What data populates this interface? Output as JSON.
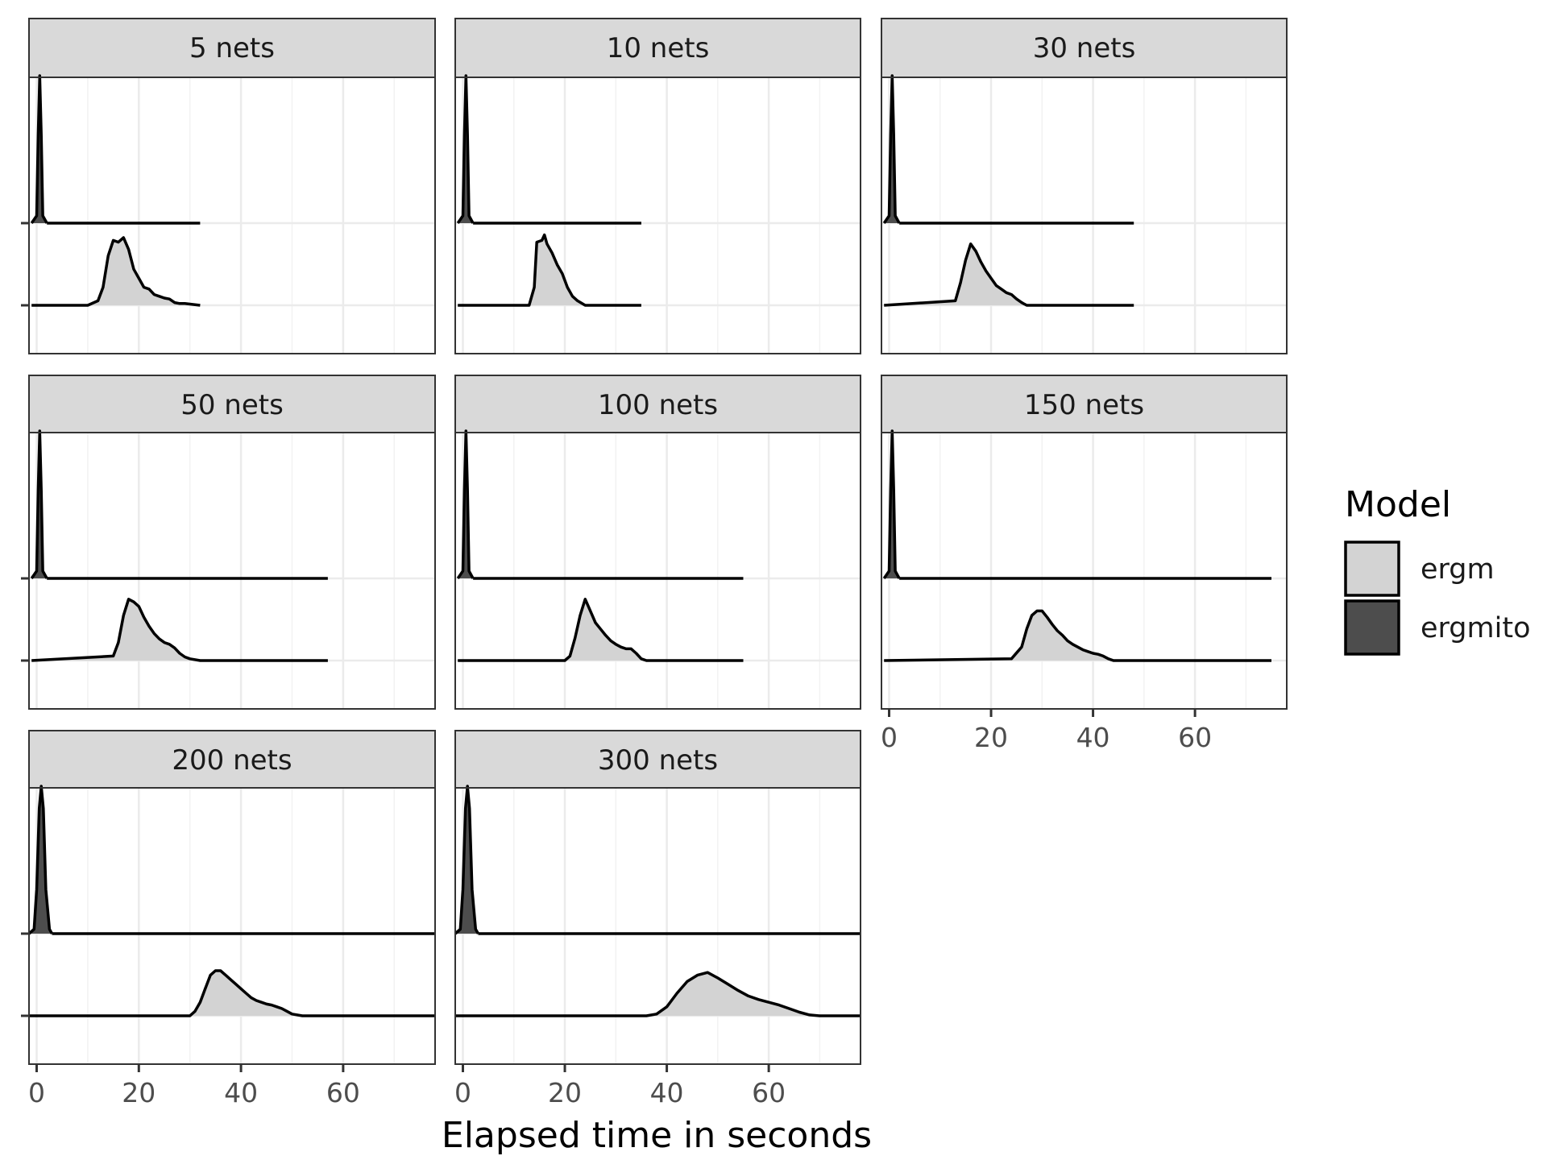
{
  "chart_data": {
    "type": "ridgeline",
    "xlabel": "Elapsed time in seconds",
    "ylabel": "",
    "xlim": [
      -1.5,
      78
    ],
    "x_ticks": [
      0,
      20,
      40,
      60
    ],
    "grid": true,
    "legend": {
      "title": "Model",
      "placement": "right",
      "entries": [
        {
          "name": "ergm",
          "color": "#d3d3d3"
        },
        {
          "name": "ergmito",
          "color": "#4d4d4d"
        }
      ]
    },
    "panels": [
      {
        "label": "5 nets",
        "x_range": [
          -1,
          32
        ],
        "ergmito_curve": [
          [
            -1,
            0
          ],
          [
            0,
            0.05
          ],
          [
            0.3,
            0.6
          ],
          [
            0.6,
            1.0
          ],
          [
            0.9,
            0.6
          ],
          [
            1.2,
            0.05
          ],
          [
            2,
            0
          ]
        ],
        "ergm_curve": [
          [
            -1,
            0
          ],
          [
            10,
            0
          ],
          [
            12,
            0.05
          ],
          [
            13,
            0.2
          ],
          [
            14,
            0.55
          ],
          [
            15,
            0.72
          ],
          [
            16,
            0.7
          ],
          [
            17,
            0.75
          ],
          [
            18,
            0.62
          ],
          [
            19,
            0.4
          ],
          [
            20,
            0.3
          ],
          [
            21,
            0.2
          ],
          [
            22,
            0.18
          ],
          [
            23,
            0.12
          ],
          [
            24,
            0.1
          ],
          [
            25,
            0.08
          ],
          [
            26,
            0.07
          ],
          [
            27,
            0.03
          ],
          [
            28,
            0.02
          ],
          [
            29,
            0.02
          ],
          [
            32,
            0
          ]
        ]
      },
      {
        "label": "10 nets",
        "x_range": [
          -1,
          35
        ],
        "ergmito_curve": [
          [
            -1,
            0
          ],
          [
            0,
            0.05
          ],
          [
            0.3,
            0.6
          ],
          [
            0.6,
            1.0
          ],
          [
            0.9,
            0.6
          ],
          [
            1.2,
            0.05
          ],
          [
            2,
            0
          ]
        ],
        "ergm_curve": [
          [
            -1,
            0
          ],
          [
            13,
            0
          ],
          [
            14,
            0.2
          ],
          [
            14.5,
            0.7
          ],
          [
            15.5,
            0.72
          ],
          [
            16,
            0.78
          ],
          [
            16.5,
            0.68
          ],
          [
            17.5,
            0.58
          ],
          [
            18.5,
            0.45
          ],
          [
            19.5,
            0.35
          ],
          [
            20.5,
            0.2
          ],
          [
            21.5,
            0.1
          ],
          [
            22.5,
            0.05
          ],
          [
            24,
            0
          ],
          [
            35,
            0
          ]
        ]
      },
      {
        "label": "30 nets",
        "x_range": [
          -1,
          48
        ],
        "ergmito_curve": [
          [
            -1,
            0
          ],
          [
            0,
            0.05
          ],
          [
            0.3,
            0.6
          ],
          [
            0.6,
            1.0
          ],
          [
            0.9,
            0.6
          ],
          [
            1.2,
            0.05
          ],
          [
            2,
            0
          ]
        ],
        "ergm_curve": [
          [
            -1,
            0
          ],
          [
            13,
            0.05
          ],
          [
            14,
            0.25
          ],
          [
            15,
            0.5
          ],
          [
            16,
            0.68
          ],
          [
            17,
            0.6
          ],
          [
            18,
            0.48
          ],
          [
            19,
            0.38
          ],
          [
            20,
            0.3
          ],
          [
            21,
            0.22
          ],
          [
            22,
            0.18
          ],
          [
            23,
            0.14
          ],
          [
            24,
            0.12
          ],
          [
            25,
            0.07
          ],
          [
            26,
            0.03
          ],
          [
            27,
            0
          ],
          [
            48,
            0
          ]
        ]
      },
      {
        "label": "50 nets",
        "x_range": [
          -1,
          57
        ],
        "ergmito_curve": [
          [
            -1,
            0
          ],
          [
            0,
            0.05
          ],
          [
            0.3,
            0.6
          ],
          [
            0.6,
            1.0
          ],
          [
            0.9,
            0.6
          ],
          [
            1.2,
            0.05
          ],
          [
            2,
            0
          ]
        ],
        "ergm_curve": [
          [
            -1,
            0
          ],
          [
            15,
            0.05
          ],
          [
            16,
            0.2
          ],
          [
            17,
            0.5
          ],
          [
            18,
            0.68
          ],
          [
            19,
            0.65
          ],
          [
            20,
            0.6
          ],
          [
            21,
            0.48
          ],
          [
            22,
            0.38
          ],
          [
            23,
            0.3
          ],
          [
            24,
            0.24
          ],
          [
            25,
            0.2
          ],
          [
            26,
            0.18
          ],
          [
            27,
            0.14
          ],
          [
            28,
            0.08
          ],
          [
            29,
            0.04
          ],
          [
            30,
            0.02
          ],
          [
            32,
            0
          ],
          [
            57,
            0
          ]
        ]
      },
      {
        "label": "100 nets",
        "x_range": [
          -1,
          55
        ],
        "ergmito_curve": [
          [
            -1,
            0
          ],
          [
            0,
            0.05
          ],
          [
            0.3,
            0.6
          ],
          [
            0.6,
            1.0
          ],
          [
            0.9,
            0.6
          ],
          [
            1.2,
            0.05
          ],
          [
            2,
            0
          ]
        ],
        "ergm_curve": [
          [
            -1,
            0
          ],
          [
            20,
            0
          ],
          [
            21,
            0.05
          ],
          [
            22,
            0.25
          ],
          [
            23,
            0.5
          ],
          [
            24,
            0.68
          ],
          [
            25,
            0.55
          ],
          [
            26,
            0.42
          ],
          [
            27,
            0.35
          ],
          [
            28,
            0.28
          ],
          [
            29,
            0.22
          ],
          [
            30,
            0.18
          ],
          [
            31,
            0.15
          ],
          [
            32,
            0.13
          ],
          [
            33,
            0.13
          ],
          [
            34,
            0.08
          ],
          [
            35,
            0.02
          ],
          [
            36,
            0
          ],
          [
            55,
            0
          ]
        ]
      },
      {
        "label": "150 nets",
        "x_range": [
          -1,
          75
        ],
        "ergmito_curve": [
          [
            -1,
            0
          ],
          [
            0,
            0.05
          ],
          [
            0.3,
            0.6
          ],
          [
            0.6,
            1.0
          ],
          [
            0.9,
            0.6
          ],
          [
            1.2,
            0.05
          ],
          [
            2,
            0
          ]
        ],
        "ergm_curve": [
          [
            -1,
            0
          ],
          [
            24,
            0.02
          ],
          [
            26,
            0.15
          ],
          [
            27,
            0.35
          ],
          [
            28,
            0.5
          ],
          [
            29,
            0.55
          ],
          [
            30,
            0.55
          ],
          [
            31,
            0.48
          ],
          [
            32,
            0.4
          ],
          [
            33,
            0.33
          ],
          [
            34,
            0.28
          ],
          [
            35,
            0.22
          ],
          [
            36,
            0.18
          ],
          [
            37,
            0.15
          ],
          [
            38,
            0.12
          ],
          [
            39,
            0.1
          ],
          [
            40,
            0.08
          ],
          [
            41,
            0.07
          ],
          [
            42,
            0.05
          ],
          [
            43,
            0.02
          ],
          [
            44,
            0
          ],
          [
            75,
            0
          ]
        ]
      },
      {
        "label": "200 nets",
        "x_range": [
          -1.5,
          78
        ],
        "ergmito_curve": [
          [
            -1.5,
            0
          ],
          [
            -0.5,
            0.03
          ],
          [
            0,
            0.3
          ],
          [
            0.5,
            0.85
          ],
          [
            0.9,
            1.0
          ],
          [
            1.3,
            0.85
          ],
          [
            1.8,
            0.3
          ],
          [
            2.5,
            0.03
          ],
          [
            3,
            0
          ]
        ],
        "ergm_curve": [
          [
            -1.5,
            0
          ],
          [
            30,
            0
          ],
          [
            31,
            0.05
          ],
          [
            32,
            0.15
          ],
          [
            33,
            0.3
          ],
          [
            34,
            0.45
          ],
          [
            35,
            0.5
          ],
          [
            36,
            0.5
          ],
          [
            37,
            0.45
          ],
          [
            38,
            0.4
          ],
          [
            39,
            0.35
          ],
          [
            40,
            0.3
          ],
          [
            41,
            0.25
          ],
          [
            42,
            0.2
          ],
          [
            43,
            0.17
          ],
          [
            44,
            0.15
          ],
          [
            45,
            0.13
          ],
          [
            46,
            0.12
          ],
          [
            47,
            0.1
          ],
          [
            48,
            0.08
          ],
          [
            49,
            0.05
          ],
          [
            50,
            0.02
          ],
          [
            52,
            0
          ],
          [
            78,
            0
          ]
        ]
      },
      {
        "label": "300 nets",
        "x_range": [
          -1.5,
          78
        ],
        "ergmito_curve": [
          [
            -1.5,
            0
          ],
          [
            -0.5,
            0.03
          ],
          [
            0,
            0.3
          ],
          [
            0.5,
            0.85
          ],
          [
            0.9,
            1.0
          ],
          [
            1.3,
            0.85
          ],
          [
            1.8,
            0.3
          ],
          [
            2.5,
            0.03
          ],
          [
            3,
            0
          ]
        ],
        "ergm_curve": [
          [
            -1.5,
            0
          ],
          [
            36,
            0
          ],
          [
            38,
            0.02
          ],
          [
            40,
            0.1
          ],
          [
            42,
            0.25
          ],
          [
            44,
            0.38
          ],
          [
            46,
            0.45
          ],
          [
            48,
            0.48
          ],
          [
            50,
            0.42
          ],
          [
            52,
            0.35
          ],
          [
            54,
            0.28
          ],
          [
            56,
            0.22
          ],
          [
            58,
            0.18
          ],
          [
            60,
            0.15
          ],
          [
            62,
            0.12
          ],
          [
            64,
            0.08
          ],
          [
            66,
            0.04
          ],
          [
            68,
            0.01
          ],
          [
            70,
            0
          ],
          [
            78,
            0
          ]
        ]
      }
    ]
  }
}
